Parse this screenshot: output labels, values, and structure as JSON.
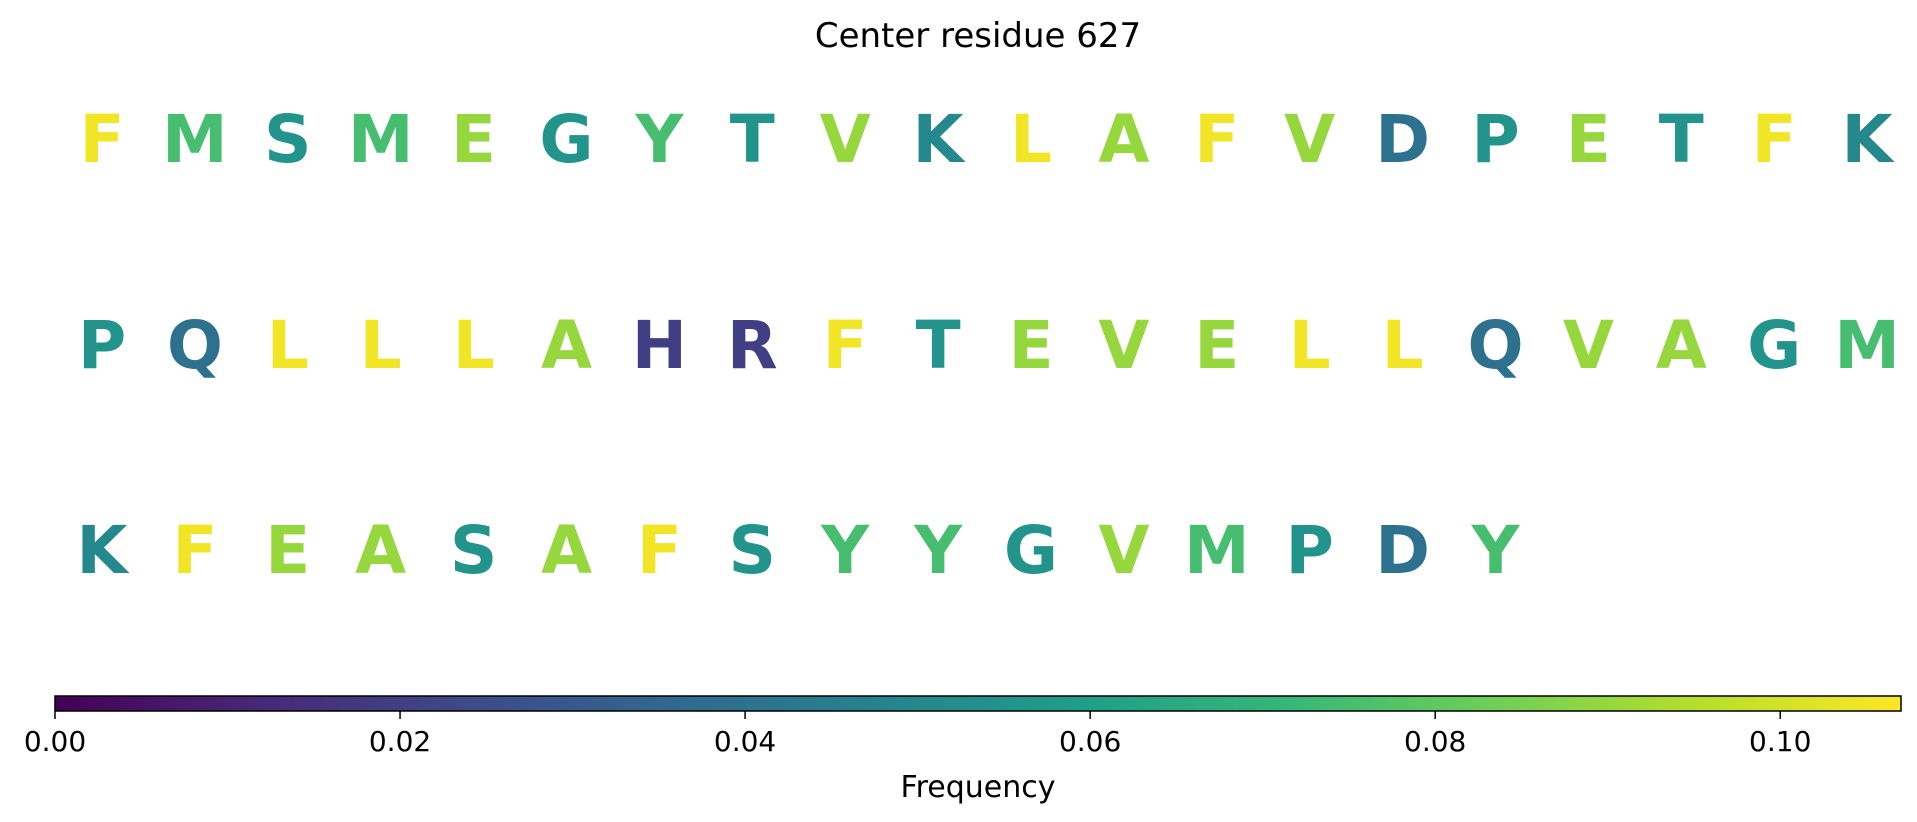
{
  "chart_data": {
    "type": "heatmap",
    "title": "Center residue 627",
    "rows": [
      {
        "residues": [
          "F",
          "M",
          "S",
          "M",
          "E",
          "G",
          "Y",
          "T",
          "V",
          "K",
          "L",
          "A",
          "F",
          "V",
          "D",
          "P",
          "E",
          "T",
          "F",
          "K"
        ],
        "values": [
          0.105,
          0.075,
          0.055,
          0.075,
          0.09,
          0.055,
          0.075,
          0.055,
          0.09,
          0.05,
          0.105,
          0.09,
          0.105,
          0.09,
          0.04,
          0.055,
          0.09,
          0.055,
          0.105,
          0.05
        ]
      },
      {
        "residues": [
          "P",
          "Q",
          "L",
          "L",
          "L",
          "A",
          "H",
          "R",
          "F",
          "T",
          "E",
          "V",
          "E",
          "L",
          "L",
          "Q",
          "V",
          "A",
          "G",
          "M"
        ],
        "values": [
          0.055,
          0.04,
          0.105,
          0.105,
          0.105,
          0.09,
          0.02,
          0.02,
          0.105,
          0.055,
          0.09,
          0.09,
          0.09,
          0.105,
          0.105,
          0.04,
          0.09,
          0.09,
          0.055,
          0.075
        ]
      },
      {
        "residues": [
          "K",
          "F",
          "E",
          "A",
          "S",
          "A",
          "F",
          "S",
          "Y",
          "Y",
          "G",
          "V",
          "M",
          "P",
          "D",
          "Y"
        ],
        "values": [
          0.05,
          0.105,
          0.09,
          0.09,
          0.055,
          0.09,
          0.105,
          0.055,
          0.075,
          0.075,
          0.055,
          0.09,
          0.075,
          0.055,
          0.04,
          0.075
        ]
      }
    ],
    "colorbar": {
      "label": "Frequency",
      "range": [
        0,
        0.107
      ],
      "ticks": [
        0,
        0.02,
        0.04,
        0.06,
        0.08,
        0.1
      ],
      "tick_labels": [
        "0.00",
        "0.02",
        "0.04",
        "0.06",
        "0.08",
        "0.10"
      ],
      "colormap": [
        "#440154",
        "#482878",
        "#3e4989",
        "#31688e",
        "#26828e",
        "#1f9e89",
        "#35b779",
        "#6ece58",
        "#b5de2b",
        "#fde725"
      ]
    }
  }
}
